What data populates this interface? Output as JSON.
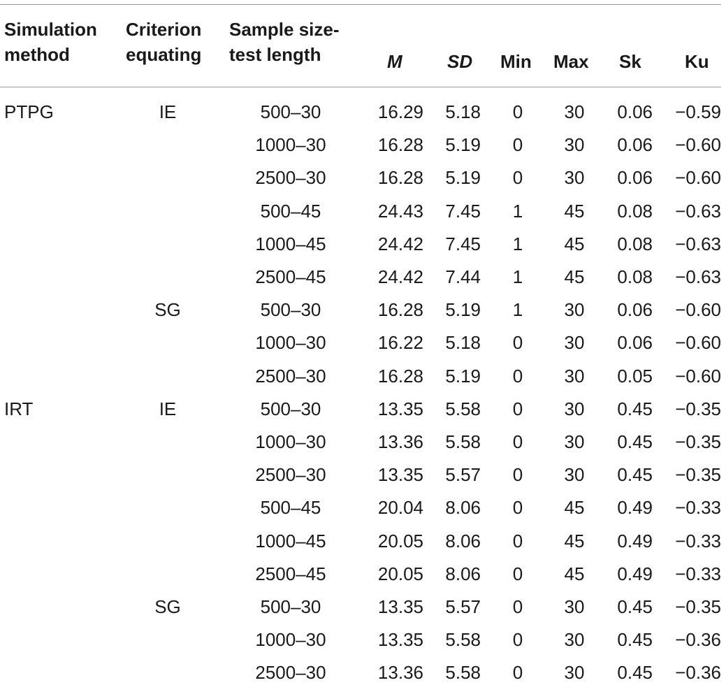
{
  "headers": {
    "method": [
      "Simulation",
      "method"
    ],
    "criterion": [
      "Criterion",
      "equating"
    ],
    "sample": [
      "Sample size-",
      "test length"
    ],
    "m": "M",
    "sd": "SD",
    "min": "Min",
    "max": "Max",
    "sk": "Sk",
    "ku": "Ku"
  },
  "rows": [
    {
      "method": "PTPG",
      "criterion": "IE",
      "sample": "500–30",
      "m": "16.29",
      "sd": "5.18",
      "min": "0",
      "max": "30",
      "sk": "0.06",
      "ku": "−0.59"
    },
    {
      "method": "",
      "criterion": "",
      "sample": "1000–30",
      "m": "16.28",
      "sd": "5.19",
      "min": "0",
      "max": "30",
      "sk": "0.06",
      "ku": "−0.60"
    },
    {
      "method": "",
      "criterion": "",
      "sample": "2500–30",
      "m": "16.28",
      "sd": "5.19",
      "min": "0",
      "max": "30",
      "sk": "0.06",
      "ku": "−0.60"
    },
    {
      "method": "",
      "criterion": "",
      "sample": "500–45",
      "m": "24.43",
      "sd": "7.45",
      "min": "1",
      "max": "45",
      "sk": "0.08",
      "ku": "−0.63"
    },
    {
      "method": "",
      "criterion": "",
      "sample": "1000–45",
      "m": "24.42",
      "sd": "7.45",
      "min": "1",
      "max": "45",
      "sk": "0.08",
      "ku": "−0.63"
    },
    {
      "method": "",
      "criterion": "",
      "sample": "2500–45",
      "m": "24.42",
      "sd": "7.44",
      "min": "1",
      "max": "45",
      "sk": "0.08",
      "ku": "−0.63"
    },
    {
      "method": "",
      "criterion": "SG",
      "sample": "500–30",
      "m": "16.28",
      "sd": "5.19",
      "min": "1",
      "max": "30",
      "sk": "0.06",
      "ku": "−0.60"
    },
    {
      "method": "",
      "criterion": "",
      "sample": "1000–30",
      "m": "16.22",
      "sd": "5.18",
      "min": "0",
      "max": "30",
      "sk": "0.06",
      "ku": "−0.60"
    },
    {
      "method": "",
      "criterion": "",
      "sample": "2500–30",
      "m": "16.28",
      "sd": "5.19",
      "min": "0",
      "max": "30",
      "sk": "0.05",
      "ku": "−0.60"
    },
    {
      "method": "IRT",
      "criterion": "IE",
      "sample": "500–30",
      "m": "13.35",
      "sd": "5.58",
      "min": "0",
      "max": "30",
      "sk": "0.45",
      "ku": "−0.35"
    },
    {
      "method": "",
      "criterion": "",
      "sample": "1000–30",
      "m": "13.36",
      "sd": "5.58",
      "min": "0",
      "max": "30",
      "sk": "0.45",
      "ku": "−0.35"
    },
    {
      "method": "",
      "criterion": "",
      "sample": "2500–30",
      "m": "13.35",
      "sd": "5.57",
      "min": "0",
      "max": "30",
      "sk": "0.45",
      "ku": "−0.35"
    },
    {
      "method": "",
      "criterion": "",
      "sample": "500–45",
      "m": "20.04",
      "sd": "8.06",
      "min": "0",
      "max": "45",
      "sk": "0.49",
      "ku": "−0.33"
    },
    {
      "method": "",
      "criterion": "",
      "sample": "1000–45",
      "m": "20.05",
      "sd": "8.06",
      "min": "0",
      "max": "45",
      "sk": "0.49",
      "ku": "−0.33"
    },
    {
      "method": "",
      "criterion": "",
      "sample": "2500–45",
      "m": "20.05",
      "sd": "8.06",
      "min": "0",
      "max": "45",
      "sk": "0.49",
      "ku": "−0.33"
    },
    {
      "method": "",
      "criterion": "SG",
      "sample": "500–30",
      "m": "13.35",
      "sd": "5.57",
      "min": "0",
      "max": "30",
      "sk": "0.45",
      "ku": "−0.35"
    },
    {
      "method": "",
      "criterion": "",
      "sample": "1000–30",
      "m": "13.35",
      "sd": "5.58",
      "min": "0",
      "max": "30",
      "sk": "0.45",
      "ku": "−0.36"
    },
    {
      "method": "",
      "criterion": "",
      "sample": "2500–30",
      "m": "13.36",
      "sd": "5.58",
      "min": "0",
      "max": "30",
      "sk": "0.45",
      "ku": "−0.36"
    }
  ]
}
